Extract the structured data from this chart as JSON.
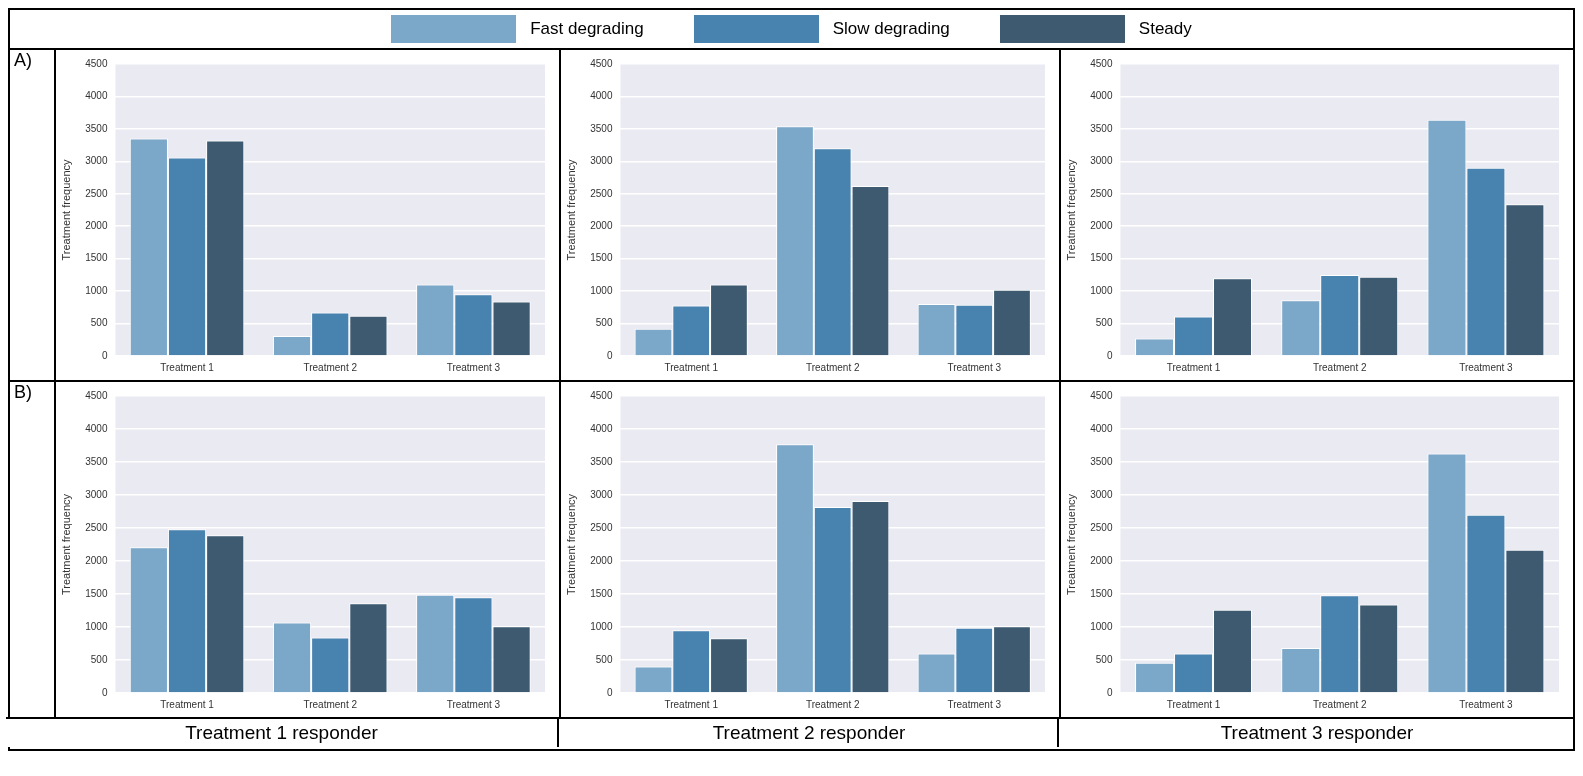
{
  "chart_data": [
    {
      "type": "bar",
      "categories": [
        "Treatment 1",
        "Treatment 2",
        "Treatment 3"
      ],
      "ylabel": "Treatment frequency",
      "ylim": [
        0,
        4500
      ],
      "yticks": [
        0,
        500,
        1000,
        1500,
        2000,
        2500,
        3000,
        3500,
        4000,
        4500
      ],
      "grid": "y",
      "legend": "top",
      "annotations": [
        "A)"
      ],
      "series": [
        {
          "name": "Fast degrading",
          "color": "#7ba8c9",
          "values": [
            3350,
            310,
            1100
          ]
        },
        {
          "name": "Slow degrading",
          "color": "#4883b0",
          "values": [
            3060,
            670,
            950
          ]
        },
        {
          "name": "Steady",
          "color": "#3d5a70",
          "values": [
            3320,
            620,
            840
          ]
        }
      ]
    },
    {
      "type": "bar",
      "categories": [
        "Treatment 1",
        "Treatment 2",
        "Treatment 3"
      ],
      "ylabel": "Treatment frequency",
      "ylim": [
        0,
        4500
      ],
      "yticks": [
        0,
        500,
        1000,
        1500,
        2000,
        2500,
        3000,
        3500,
        4000,
        4500
      ],
      "grid": "y",
      "series": [
        {
          "color": "#7ba8c9",
          "values": [
            420,
            3540,
            800
          ]
        },
        {
          "color": "#4883b0",
          "values": [
            780,
            3200,
            790
          ]
        },
        {
          "color": "#3d5a70",
          "values": [
            1100,
            2620,
            1020
          ]
        }
      ]
    },
    {
      "type": "bar",
      "categories": [
        "Treatment 1",
        "Treatment 2",
        "Treatment 3"
      ],
      "ylabel": "Treatment frequency",
      "ylim": [
        0,
        4500
      ],
      "yticks": [
        0,
        500,
        1000,
        1500,
        2000,
        2500,
        3000,
        3500,
        4000,
        4500
      ],
      "grid": "y",
      "series": [
        {
          "color": "#7ba8c9",
          "values": [
            270,
            860,
            3640
          ]
        },
        {
          "color": "#4883b0",
          "values": [
            610,
            1250,
            2900
          ]
        },
        {
          "color": "#3d5a70",
          "values": [
            1200,
            1220,
            2340
          ]
        }
      ]
    },
    {
      "type": "bar",
      "categories": [
        "Treatment 1",
        "Treatment 2",
        "Treatment 3"
      ],
      "ylabel": "Treatment frequency",
      "xlabel": "Treatment 1 responder",
      "ylim": [
        0,
        4500
      ],
      "yticks": [
        0,
        500,
        1000,
        1500,
        2000,
        2500,
        3000,
        3500,
        4000,
        4500
      ],
      "grid": "y",
      "annotations": [
        "B)"
      ],
      "series": [
        {
          "color": "#7ba8c9",
          "values": [
            2210,
            1070,
            1490
          ]
        },
        {
          "color": "#4883b0",
          "values": [
            2480,
            840,
            1450
          ]
        },
        {
          "color": "#3d5a70",
          "values": [
            2390,
            1360,
            1010
          ]
        }
      ]
    },
    {
      "type": "bar",
      "categories": [
        "Treatment 1",
        "Treatment 2",
        "Treatment 3"
      ],
      "ylabel": "Treatment frequency",
      "xlabel": "Treatment 2 responder",
      "ylim": [
        0,
        4500
      ],
      "yticks": [
        0,
        500,
        1000,
        1500,
        2000,
        2500,
        3000,
        3500,
        4000,
        4500
      ],
      "grid": "y",
      "series": [
        {
          "color": "#7ba8c9",
          "values": [
            400,
            3770,
            600
          ]
        },
        {
          "color": "#4883b0",
          "values": [
            950,
            2820,
            990
          ]
        },
        {
          "color": "#3d5a70",
          "values": [
            830,
            2910,
            1010
          ]
        }
      ]
    },
    {
      "type": "bar",
      "categories": [
        "Treatment 1",
        "Treatment 2",
        "Treatment 3"
      ],
      "ylabel": "Treatment frequency",
      "xlabel": "Treatment 3 responder",
      "ylim": [
        0,
        4500
      ],
      "yticks": [
        0,
        500,
        1000,
        1500,
        2000,
        2500,
        3000,
        3500,
        4000,
        4500
      ],
      "grid": "y",
      "series": [
        {
          "color": "#7ba8c9",
          "values": [
            460,
            680,
            3630
          ]
        },
        {
          "color": "#4883b0",
          "values": [
            600,
            1480,
            2700
          ]
        },
        {
          "color": "#3d5a70",
          "values": [
            1260,
            1340,
            2170
          ]
        }
      ]
    }
  ]
}
